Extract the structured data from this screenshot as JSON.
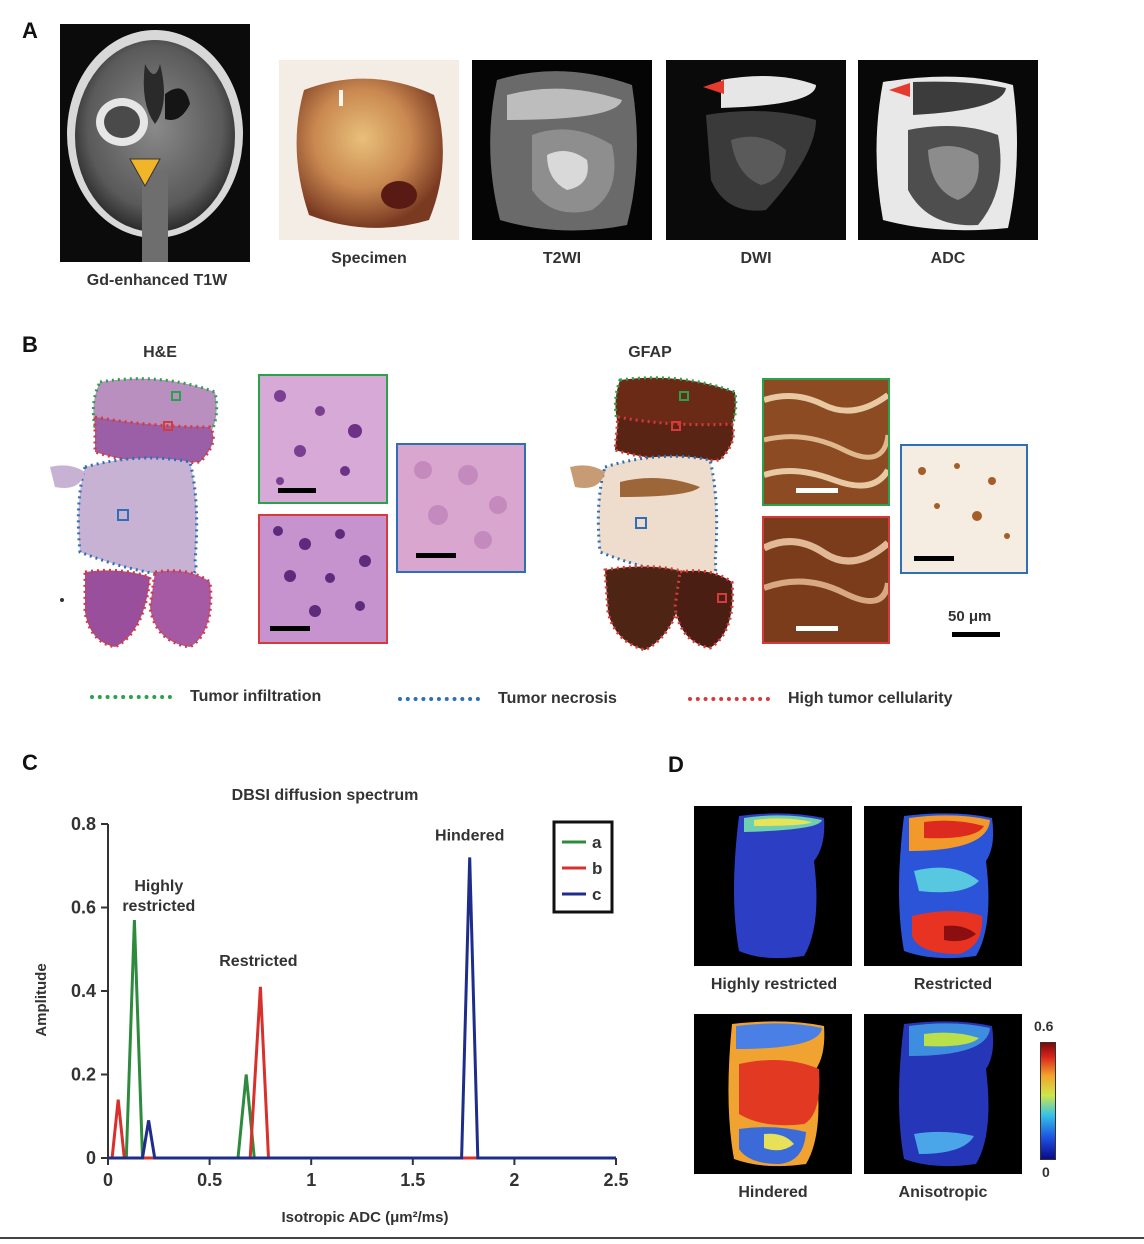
{
  "panels": {
    "a": "A",
    "b": "B",
    "c": "C",
    "d": "D"
  },
  "panel_a": {
    "captions": [
      "Gd-enhanced T1W",
      "Specimen",
      "T2WI",
      "DWI",
      "ADC"
    ]
  },
  "panel_b": {
    "titles": [
      "H&E",
      "GFAP"
    ],
    "scale_bar": "50 μm",
    "legend": [
      {
        "label": "Tumor infiltration",
        "color": "#2aa24a"
      },
      {
        "label": "Tumor necrosis",
        "color": "#2f6fb5"
      },
      {
        "label": "High tumor cellularity",
        "color": "#d63a3a"
      }
    ]
  },
  "panel_d": {
    "maps": [
      "Highly restricted",
      "Restricted",
      "Hindered",
      "Anisotropic"
    ],
    "colorbar_max": "0.6",
    "colorbar_min": "0"
  },
  "chart_data": {
    "type": "line",
    "title": "DBSI diffusion spectrum",
    "xlabel": "Isotropic ADC (μm²/ms)",
    "ylabel": "Amplitude",
    "xlim": [
      0,
      2.5
    ],
    "ylim": [
      0,
      0.8
    ],
    "xticks": [
      "0",
      "0.5",
      "1",
      "1.5",
      "2",
      "2.5"
    ],
    "yticks": [
      "0",
      "0.2",
      "0.4",
      "0.6",
      "0.8"
    ],
    "legend_position": "top-right",
    "annotations": [
      {
        "text": "Highly\nrestricted",
        "x": 0.25,
        "y": 0.64
      },
      {
        "text": "Restricted",
        "x": 0.74,
        "y": 0.46
      },
      {
        "text": "Hindered",
        "x": 1.78,
        "y": 0.76
      }
    ],
    "series": [
      {
        "name": "a",
        "color": "#2e8b3e",
        "x": [
          0,
          0.09,
          0.13,
          0.17,
          0.64,
          0.68,
          0.72,
          2.5
        ],
        "y": [
          0,
          0,
          0.57,
          0,
          0,
          0.2,
          0,
          0
        ]
      },
      {
        "name": "b",
        "color": "#d8302c",
        "x": [
          0,
          0.02,
          0.05,
          0.08,
          0.7,
          0.75,
          0.79,
          1.78,
          1.82,
          2.5
        ],
        "y": [
          0,
          0,
          0.14,
          0,
          0,
          0.41,
          0,
          0,
          0,
          0
        ]
      },
      {
        "name": "c",
        "color": "#1f2d8a",
        "x": [
          0,
          0.17,
          0.2,
          0.23,
          1.74,
          1.78,
          1.82,
          2.5
        ],
        "y": [
          0,
          0,
          0.09,
          0,
          0,
          0.72,
          0,
          0
        ]
      }
    ]
  }
}
